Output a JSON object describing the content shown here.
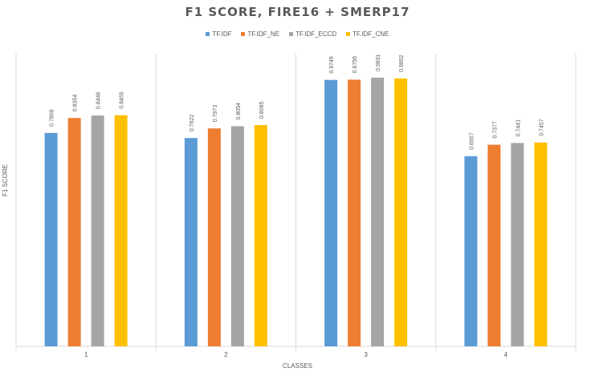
{
  "chart_data": {
    "type": "bar",
    "title": "F1 SCORE, FIRE16 + SMERP17",
    "xlabel": "CLASSES",
    "ylabel": "F1 SCORE",
    "categories": [
      "1",
      "2",
      "3",
      "4"
    ],
    "series": [
      {
        "name": "TF.IDF",
        "color": "#5B9BD5",
        "values": [
          0.7808,
          0.7622,
          0.9749,
          0.6957
        ],
        "labels": [
          "0.7808",
          "0.7622",
          "0.9749",
          "0.6957"
        ]
      },
      {
        "name": "TF.IDF_NE",
        "color": "#ED7D31",
        "values": [
          0.8354,
          0.7973,
          0.9756,
          0.7377
        ],
        "labels": [
          "0.8354",
          "0.7973",
          "0.9756",
          "0.7377"
        ]
      },
      {
        "name": "TF.IDF_ECCD",
        "color": "#A5A5A5",
        "values": [
          0.8446,
          0.8054,
          0.9831,
          0.7441
        ],
        "labels": [
          "0.8446",
          "0.8054",
          "0.9831",
          "0.7441"
        ]
      },
      {
        "name": "TF.IDF_CNE",
        "color": "#FFC000",
        "values": [
          0.8455,
          0.8095,
          0.9802,
          0.7457
        ],
        "labels": [
          "0.8455",
          "0.8095",
          "0.9802",
          "0.7457"
        ]
      }
    ],
    "ylim": [
      0,
      1.1
    ],
    "grid": "vertical category separators",
    "legend": "top-center"
  }
}
